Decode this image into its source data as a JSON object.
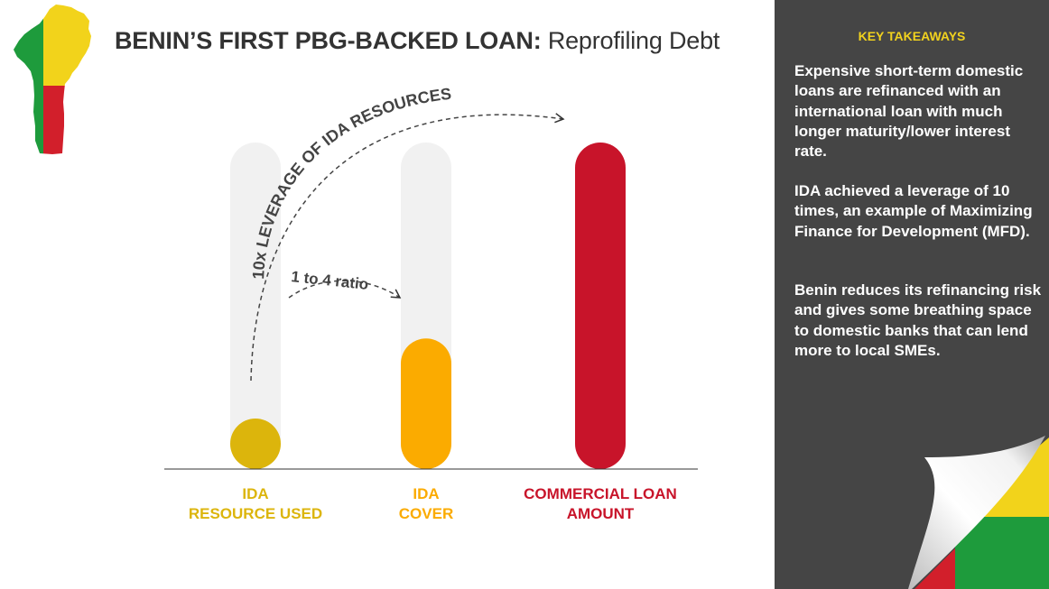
{
  "header": {
    "title_bold": "BENIN’S FIRST PBG-BACKED LOAN:",
    "title_rest": "Reprofiling Debt"
  },
  "panel": {
    "heading": "KEY TAKEAWAYS",
    "paragraphs": [
      "Expensive short-term domestic loans are refinanced with an international loan with much longer maturity/lower interest rate.",
      "IDA achieved a leverage of 10 times, an example of Maximizing Finance for Development (MFD).",
      "Benin reduces its refinancing risk and gives some breathing space to domestic banks that can lend more to local SMEs."
    ]
  },
  "colors": {
    "ida_used": "#dcb50c",
    "ida_cover": "#fbab00",
    "commercial": "#c8142a",
    "track": "#f1f1f1",
    "panel_bg": "#454545",
    "heading": "#f1d21e",
    "flag_green": "#1e9b3c",
    "flag_yellow": "#f2d31b",
    "flag_red": "#d21f2b"
  },
  "icons": [
    "benin-map-icon",
    "flag-page-curl-icon"
  ],
  "chart_data": {
    "type": "bar",
    "categories": [
      [
        "IDA",
        "RESOURCE USED"
      ],
      [
        "IDA",
        "COVER"
      ],
      [
        "COMMERCIAL LOAN",
        "AMOUNT"
      ]
    ],
    "values": [
      1,
      4,
      10
    ],
    "ylim": [
      0,
      10
    ],
    "grid": false,
    "annotations": [
      {
        "text": "1 to 4 ratio",
        "from": 0,
        "to": 1
      },
      {
        "text": "10x LEVERAGE OF IDA RESOURCES",
        "from": 0,
        "to": 2
      }
    ]
  }
}
